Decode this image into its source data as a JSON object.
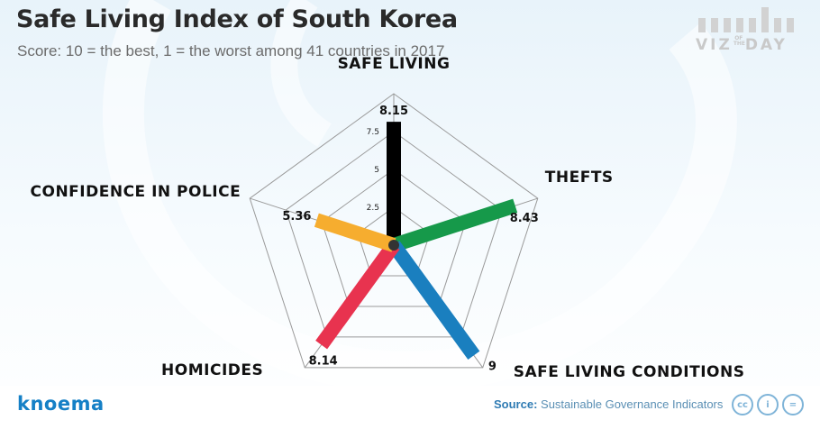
{
  "header": {
    "title": "Safe Living Index of South Korea",
    "subtitle": "Score: 10 = the best, 1 = the worst among 41 countries in 2017"
  },
  "branding": {
    "viz_part1": "VIZ",
    "viz_of": "OF THE",
    "viz_part2": "DAY",
    "brand_name": "knoema",
    "source_label": "Source:",
    "source_text": "Sustainable Governance Indicators",
    "license_icons": [
      "cc-icon",
      "attribution-icon",
      "no-derivatives-icon"
    ],
    "license_glyphs": [
      "cc",
      "i",
      "="
    ]
  },
  "chart_data": {
    "type": "radar",
    "max": 10,
    "ticks": [
      2.5,
      5,
      7.5
    ],
    "tick_labels": [
      "2.5",
      "5",
      "7.5"
    ],
    "grid": true,
    "axes": [
      {
        "name": "SAFE LIVING",
        "value": 8.15,
        "value_label": "8.15",
        "color": "#000000"
      },
      {
        "name": "THEFTS",
        "value": 8.43,
        "value_label": "8.43",
        "color": "#16994a"
      },
      {
        "name": "SAFE LIVING CONDITIONS",
        "value": 9,
        "value_label": "9",
        "color": "#1a7fbf"
      },
      {
        "name": "HOMICIDES",
        "value": 8.14,
        "value_label": "8.14",
        "color": "#e8334f"
      },
      {
        "name": "CONFIDENCE IN POLICE",
        "value": 5.36,
        "value_label": "5.36",
        "color": "#f6ad2f"
      }
    ]
  }
}
